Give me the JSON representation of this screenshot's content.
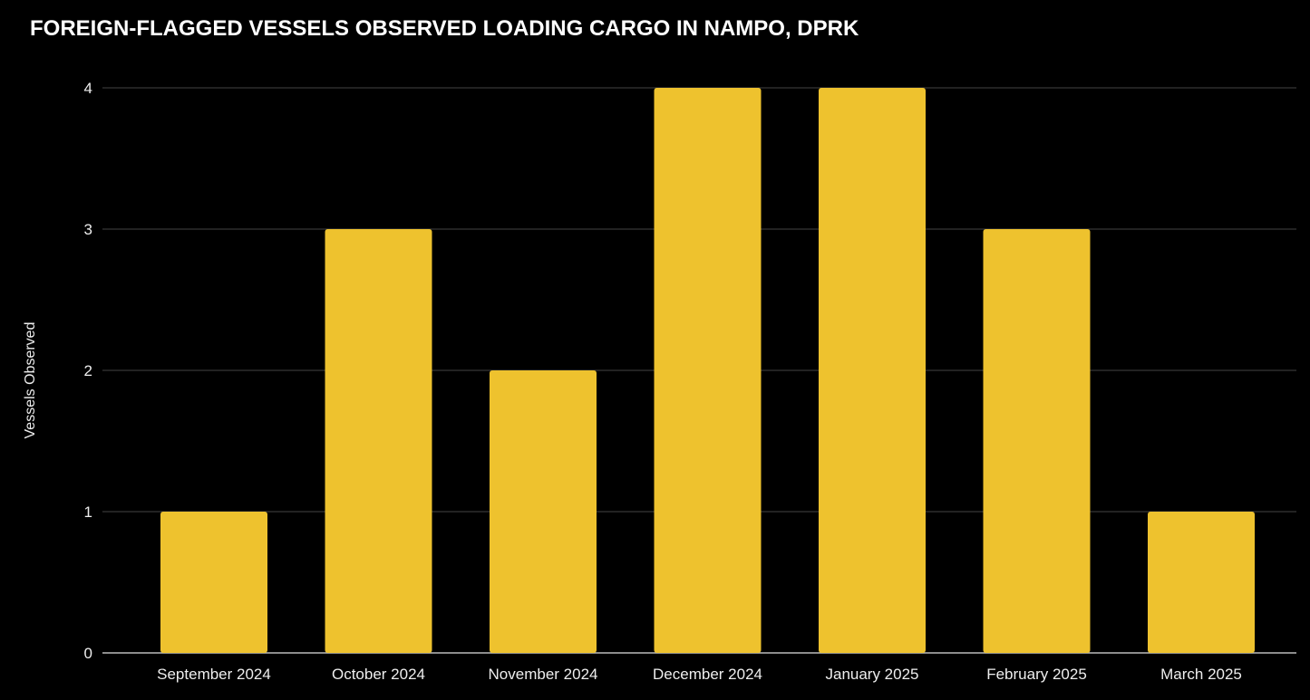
{
  "chart_data": {
    "type": "bar",
    "title": "FOREIGN-FLAGGED VESSELS OBSERVED LOADING CARGO IN NAMPO, DPRK",
    "xlabel": "",
    "ylabel": "Vessels Observed",
    "categories": [
      "September 2024",
      "October 2024",
      "November 2024",
      "December 2024",
      "January 2025",
      "February 2025",
      "March 2025"
    ],
    "values": [
      1,
      3,
      2,
      4,
      4,
      3,
      1
    ],
    "ylim": [
      0,
      4
    ],
    "yticks": [
      "0",
      "1",
      "2",
      "3",
      "4"
    ],
    "grid": true,
    "bar_color": "#EEC22E",
    "background": "#000000"
  }
}
